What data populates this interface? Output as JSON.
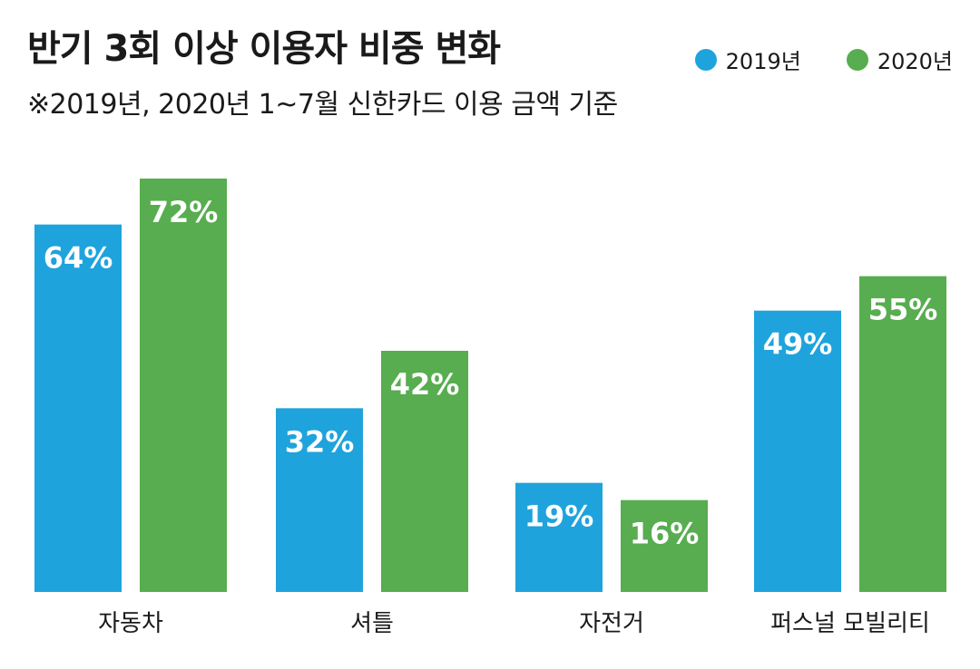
{
  "title": "반기 3회 이상 이용자 비중 변화",
  "subtitle": "※2019년, 2020년 1~7월 신한카드 이용 금액 기준",
  "legend": [
    {
      "name": "2019년",
      "color": "#1fa3dc"
    },
    {
      "name": "2020년",
      "color": "#57ad4f"
    }
  ],
  "chart_data": {
    "type": "bar",
    "title": "반기 3회 이상 이용자 비중 변화",
    "subtitle": "※2019년, 2020년 1~7월 신한카드 이용 금액 기준",
    "categories": [
      "자동차",
      "셔틀",
      "자전거",
      "퍼스널 모빌리티"
    ],
    "series": [
      {
        "name": "2019년",
        "color": "#1fa3dc",
        "values": [
          64,
          32,
          19,
          49
        ],
        "labels": [
          "64%",
          "32%",
          "19%",
          "49%"
        ]
      },
      {
        "name": "2020년",
        "color": "#57ad4f",
        "values": [
          72,
          42,
          16,
          55
        ],
        "labels": [
          "72%",
          "42%",
          "16%",
          "55%"
        ]
      }
    ],
    "ylim": [
      0,
      72
    ],
    "grid": false,
    "legend_position": "top-right"
  }
}
